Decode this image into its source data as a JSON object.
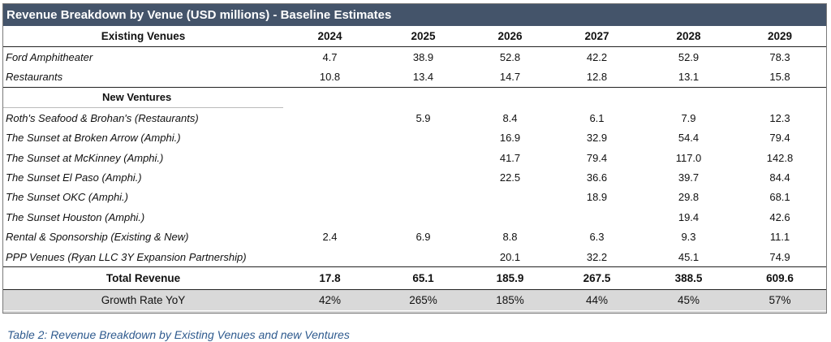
{
  "title": "Revenue Breakdown by Venue (USD millions) - Baseline Estimates",
  "header": {
    "label": "Existing Venues",
    "years": [
      "2024",
      "2025",
      "2026",
      "2027",
      "2028",
      "2029"
    ]
  },
  "existing": [
    {
      "label": "Ford Amphitheater",
      "values": [
        "4.7",
        "38.9",
        "52.8",
        "42.2",
        "52.9",
        "78.3"
      ]
    },
    {
      "label": "Restaurants",
      "values": [
        "10.8",
        "13.4",
        "14.7",
        "12.8",
        "13.1",
        "15.8"
      ]
    }
  ],
  "new_section_label": "New Ventures",
  "new": [
    {
      "label": "Roth's Seafood & Brohan's (Restaurants)",
      "values": [
        "",
        "5.9",
        "8.4",
        "6.1",
        "7.9",
        "12.3"
      ]
    },
    {
      "label": "The Sunset at Broken Arrow (Amphi.)",
      "values": [
        "",
        "",
        "16.9",
        "32.9",
        "54.4",
        "79.4"
      ]
    },
    {
      "label": "The Sunset at McKinney (Amphi.)",
      "values": [
        "",
        "",
        "41.7",
        "79.4",
        "117.0",
        "142.8"
      ]
    },
    {
      "label": "The Sunset El Paso (Amphi.)",
      "values": [
        "",
        "",
        "22.5",
        "36.6",
        "39.7",
        "84.4"
      ]
    },
    {
      "label": "The Sunset OKC (Amphi.)",
      "values": [
        "",
        "",
        "",
        "18.9",
        "29.8",
        "68.1"
      ]
    },
    {
      "label": "The Sunset Houston (Amphi.)",
      "values": [
        "",
        "",
        "",
        "",
        "19.4",
        "42.6"
      ]
    },
    {
      "label": "Rental & Sponsorship (Existing & New)",
      "values": [
        "2.4",
        "6.9",
        "8.8",
        "6.3",
        "9.3",
        "11.1"
      ]
    },
    {
      "label": "PPP Venues (Ryan LLC 3Y Expansion Partnership)",
      "values": [
        "",
        "",
        "20.1",
        "32.2",
        "45.1",
        "74.9"
      ]
    }
  ],
  "total": {
    "label": "Total Revenue",
    "values": [
      "17.8",
      "65.1",
      "185.9",
      "267.5",
      "388.5",
      "609.6"
    ]
  },
  "growth": {
    "label": "Growth Rate YoY",
    "values": [
      "42%",
      "265%",
      "185%",
      "44%",
      "45%",
      "57%"
    ]
  },
  "caption": "Table 2: Revenue Breakdown by Existing Venues and new Ventures"
}
